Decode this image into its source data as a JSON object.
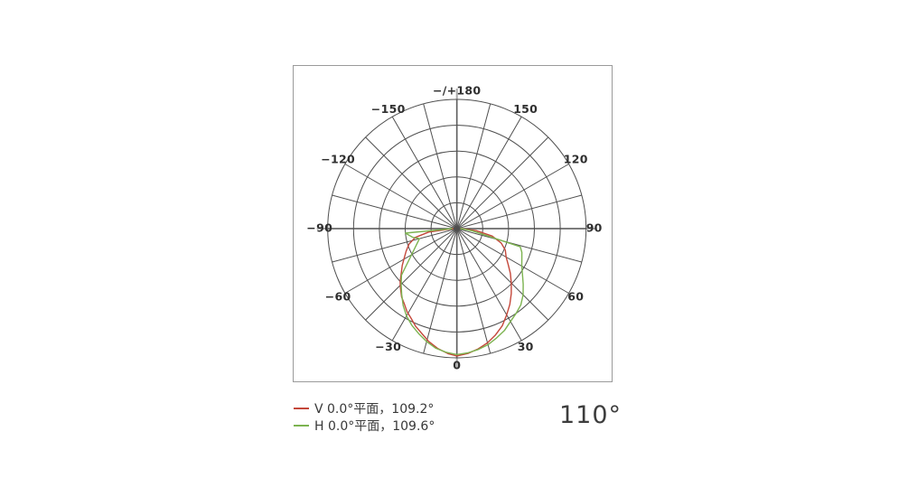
{
  "legend": {
    "items": [
      {
        "label": "V 0.0°平面，109.2°",
        "color": "#c4473a"
      },
      {
        "label": "H 0.0°平面，109.6°",
        "color": "#7cb350"
      }
    ]
  },
  "summary_angle": "110°",
  "chart_data": {
    "type": "polar_line",
    "title": "Luminous intensity distribution (beam angle diagram)",
    "angle_unit": "degrees, 0° at bottom (nadir), positive angles to the right",
    "radius_unit": "relative intensity, normalized to peak = 1.0 at outer ring",
    "grid": {
      "rings": 5,
      "ring_step": 0.2,
      "spoke_step_deg": 15,
      "r_max": 1.0,
      "grid_on": true
    },
    "angle_labels": [
      {
        "angle": 180,
        "text": "−/+180"
      },
      {
        "angle": 150,
        "text": "150"
      },
      {
        "angle": 120,
        "text": "120"
      },
      {
        "angle": 90,
        "text": "90"
      },
      {
        "angle": 60,
        "text": "60"
      },
      {
        "angle": 30,
        "text": "30"
      },
      {
        "angle": 0,
        "text": "0"
      },
      {
        "angle": -30,
        "text": "−30"
      },
      {
        "angle": -60,
        "text": "−60"
      },
      {
        "angle": -90,
        "text": "−90"
      },
      {
        "angle": -120,
        "text": "−120"
      },
      {
        "angle": -150,
        "text": "−150"
      }
    ],
    "series": [
      {
        "name": "V 0.0°平面",
        "beam_angle_deg": 109.2,
        "color": "#c4473a",
        "points": [
          [
            -90,
            0.03
          ],
          [
            -83,
            0.22
          ],
          [
            -78,
            0.33
          ],
          [
            -72,
            0.39
          ],
          [
            -66,
            0.43
          ],
          [
            -61,
            0.465
          ],
          [
            -56,
            0.51
          ],
          [
            -52,
            0.545
          ],
          [
            -47,
            0.6
          ],
          [
            -44,
            0.63
          ],
          [
            -39,
            0.68
          ],
          [
            -35,
            0.71
          ],
          [
            -31,
            0.75
          ],
          [
            -27,
            0.78
          ],
          [
            -23,
            0.82
          ],
          [
            -18,
            0.86
          ],
          [
            -14,
            0.9
          ],
          [
            -9,
            0.94
          ],
          [
            -4,
            0.97
          ],
          [
            0,
            0.985
          ],
          [
            5,
            0.97
          ],
          [
            10,
            0.945
          ],
          [
            15,
            0.915
          ],
          [
            20,
            0.875
          ],
          [
            25,
            0.83
          ],
          [
            30,
            0.77
          ],
          [
            35,
            0.715
          ],
          [
            40,
            0.655
          ],
          [
            45,
            0.595
          ],
          [
            50,
            0.54
          ],
          [
            55,
            0.485
          ],
          [
            60,
            0.44
          ],
          [
            66,
            0.41
          ],
          [
            72,
            0.36
          ],
          [
            78,
            0.28
          ],
          [
            84,
            0.15
          ],
          [
            90,
            0.03
          ]
        ]
      },
      {
        "name": "H 0.0°平面",
        "beam_angle_deg": 109.6,
        "color": "#7cb350",
        "points": [
          [
            -90,
            0.04
          ],
          [
            -85,
            0.4
          ],
          [
            -79,
            0.35
          ],
          [
            -75,
            0.3
          ],
          [
            -50,
            0.56
          ],
          [
            -45,
            0.61
          ],
          [
            -40,
            0.665
          ],
          [
            -35,
            0.725
          ],
          [
            -30,
            0.78
          ],
          [
            -25,
            0.825
          ],
          [
            -20,
            0.865
          ],
          [
            -15,
            0.905
          ],
          [
            -10,
            0.94
          ],
          [
            -5,
            0.96
          ],
          [
            0,
            0.975
          ],
          [
            5,
            0.965
          ],
          [
            10,
            0.95
          ],
          [
            15,
            0.93
          ],
          [
            20,
            0.9
          ],
          [
            25,
            0.87
          ],
          [
            30,
            0.83
          ],
          [
            35,
            0.8
          ],
          [
            40,
            0.77
          ],
          [
            45,
            0.725
          ],
          [
            50,
            0.67
          ],
          [
            55,
            0.62
          ],
          [
            60,
            0.58
          ],
          [
            65,
            0.555
          ],
          [
            70,
            0.535
          ],
          [
            74,
            0.51
          ],
          [
            82,
            0.12
          ],
          [
            90,
            0.03
          ]
        ]
      }
    ]
  }
}
